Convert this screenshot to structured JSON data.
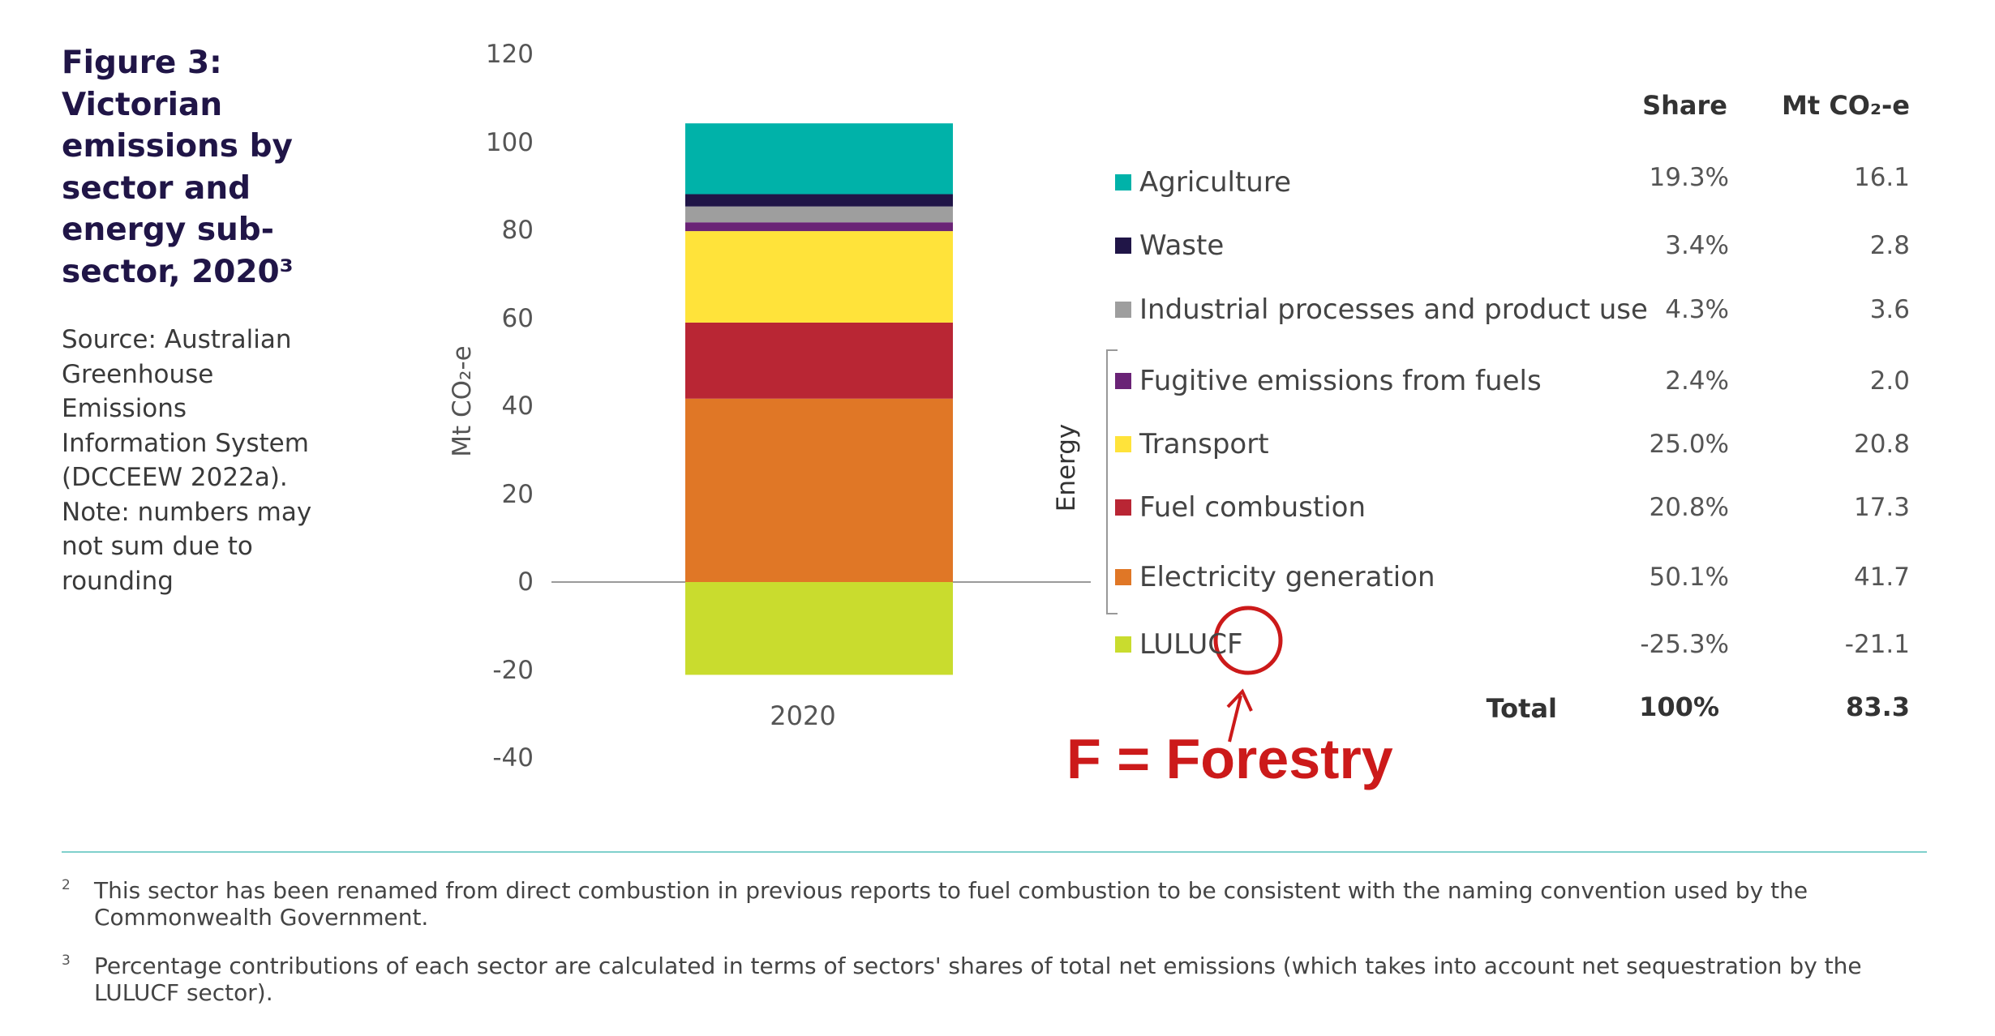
{
  "figure": {
    "title_lines": [
      "Figure 3:",
      "Victorian",
      "emissions by",
      "sector and",
      "energy sub-",
      "sector, 2020³"
    ],
    "source_lines": [
      "Source: Australian",
      "Greenhouse",
      "Emissions",
      "Information System",
      "(DCCEEW 2022a).",
      "Note: numbers may",
      "not sum due to",
      "rounding"
    ]
  },
  "chart_data": {
    "type": "bar",
    "stacked": true,
    "categories": [
      "2020"
    ],
    "ylabel": "Mt CO₂-e",
    "ylim": [
      -40,
      120
    ],
    "yticks": [
      "120",
      "100",
      "80",
      "60",
      "40",
      "20",
      "0",
      "-20",
      "-40"
    ],
    "series": [
      {
        "name": "Agriculture",
        "values": [
          16.1
        ],
        "share": "19.3%",
        "mt": "16.1",
        "color": "#00b2a9"
      },
      {
        "name": "Waste",
        "values": [
          2.8
        ],
        "share": "3.4%",
        "mt": "2.8",
        "color": "#201547"
      },
      {
        "name": "Industrial processes and product use",
        "values": [
          3.6
        ],
        "share": "4.3%",
        "mt": "3.6",
        "color": "#9e9e9e"
      },
      {
        "name": "Fugitive emissions from fuels",
        "values": [
          2.0
        ],
        "share": "2.4%",
        "mt": "2.0",
        "color": "#6a2376"
      },
      {
        "name": "Transport",
        "values": [
          20.8
        ],
        "share": "25.0%",
        "mt": "20.8",
        "color": "#ffe33a"
      },
      {
        "name": "Fuel combustion",
        "values": [
          17.3
        ],
        "share": "20.8%",
        "mt": "17.3",
        "color": "#b92634"
      },
      {
        "name": "Electricity generation",
        "values": [
          41.7
        ],
        "share": "50.1%",
        "mt": "41.7",
        "color": "#e07726"
      },
      {
        "name": "LULUCF",
        "values": [
          -21.1
        ],
        "share": "-25.3%",
        "mt": "-21.1",
        "color": "#c9dc2e"
      }
    ],
    "group_label": "Energy",
    "table_headers": {
      "share": "Share",
      "mt": "Mt CO₂-e"
    },
    "total": {
      "label": "Total",
      "share": "100%",
      "mt": "83.3"
    }
  },
  "annotation": {
    "text": "F = Forestry",
    "color": "#cc1a1a"
  },
  "footnotes": [
    {
      "num": "2",
      "text": "This sector has been renamed from direct combustion in previous reports to fuel combustion to be consistent with the naming convention used by the Commonwealth Government."
    },
    {
      "num": "3",
      "text": "Percentage contributions of each sector are calculated in terms of sectors' shares of total net emissions (which takes into account net sequestration by the LULUCF sector)."
    }
  ]
}
